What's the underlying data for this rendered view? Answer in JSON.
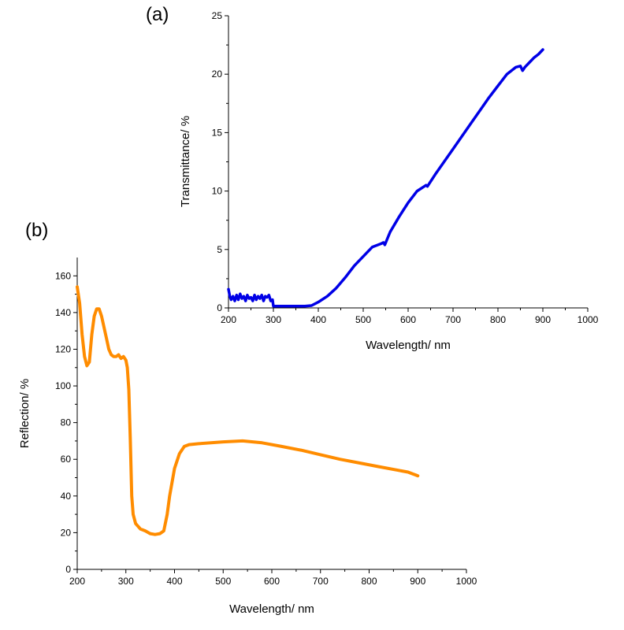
{
  "chart_data": [
    {
      "panel": "(a)",
      "type": "line",
      "xlabel": "Wavelength/ nm",
      "ylabel": "Transmittance/ %",
      "xlim": [
        200,
        1000
      ],
      "ylim": [
        0,
        25
      ],
      "xticks": [
        200,
        300,
        400,
        500,
        600,
        700,
        800,
        900,
        1000
      ],
      "yticks": [
        0,
        5,
        10,
        15,
        20,
        25
      ],
      "grid": false,
      "series": [
        {
          "name": "Transmittance",
          "color": "#0000e6",
          "x": [
            200,
            203,
            206,
            210,
            214,
            218,
            222,
            226,
            230,
            234,
            238,
            242,
            246,
            250,
            254,
            258,
            262,
            266,
            270,
            274,
            278,
            282,
            286,
            290,
            294,
            298,
            300,
            310,
            330,
            350,
            370,
            385,
            400,
            420,
            440,
            460,
            480,
            500,
            520,
            540,
            545,
            548,
            560,
            580,
            600,
            620,
            640,
            643,
            660,
            680,
            700,
            720,
            740,
            760,
            780,
            800,
            820,
            840,
            850,
            855,
            860,
            870,
            880,
            890,
            900
          ],
          "y": [
            1.6,
            1.0,
            0.7,
            1.0,
            0.6,
            1.1,
            0.7,
            1.2,
            0.8,
            1.0,
            0.6,
            1.1,
            0.8,
            0.9,
            0.6,
            1.1,
            0.7,
            1.0,
            0.8,
            1.1,
            0.6,
            1.0,
            0.9,
            1.1,
            0.6,
            0.7,
            0.15,
            0.15,
            0.15,
            0.15,
            0.15,
            0.2,
            0.5,
            1.0,
            1.7,
            2.6,
            3.6,
            4.4,
            5.2,
            5.5,
            5.6,
            5.4,
            6.5,
            7.8,
            9.0,
            10.0,
            10.5,
            10.4,
            11.4,
            12.5,
            13.6,
            14.7,
            15.8,
            16.9,
            18.0,
            19.0,
            20.0,
            20.6,
            20.7,
            20.3,
            20.6,
            21.0,
            21.4,
            21.7,
            22.1
          ]
        }
      ]
    },
    {
      "panel": "(b)",
      "type": "line",
      "xlabel": "Wavelength/ nm",
      "ylabel": "Reflection/ %",
      "xlim": [
        200,
        1000
      ],
      "ylim": [
        0,
        170
      ],
      "xticks": [
        200,
        300,
        400,
        500,
        600,
        700,
        800,
        900,
        1000
      ],
      "yticks": [
        0,
        20,
        40,
        60,
        80,
        100,
        120,
        140,
        160
      ],
      "grid": false,
      "series": [
        {
          "name": "Reflection",
          "color": "#ff8c00",
          "x": [
            200,
            205,
            210,
            215,
            220,
            225,
            230,
            235,
            240,
            245,
            250,
            255,
            260,
            265,
            270,
            275,
            280,
            285,
            290,
            295,
            300,
            303,
            306,
            309,
            312,
            315,
            320,
            330,
            340,
            350,
            360,
            370,
            378,
            385,
            390,
            400,
            410,
            420,
            430,
            450,
            500,
            540,
            580,
            620,
            660,
            700,
            740,
            780,
            820,
            860,
            880,
            890,
            895,
            900
          ],
          "y": [
            154,
            145,
            128,
            116,
            111,
            113,
            128,
            138,
            142,
            142,
            138,
            132,
            126,
            120,
            117,
            116,
            116,
            117,
            115,
            116,
            114,
            110,
            98,
            72,
            40,
            30,
            25,
            22,
            21,
            19.5,
            19,
            19.5,
            21,
            30,
            40,
            55,
            63,
            67,
            68,
            68.5,
            69.5,
            70,
            69,
            67,
            65,
            62.5,
            60,
            58,
            56,
            54,
            53,
            52,
            51.5,
            51
          ]
        }
      ]
    }
  ],
  "panel_labels": [
    "(a)",
    "(b)"
  ]
}
